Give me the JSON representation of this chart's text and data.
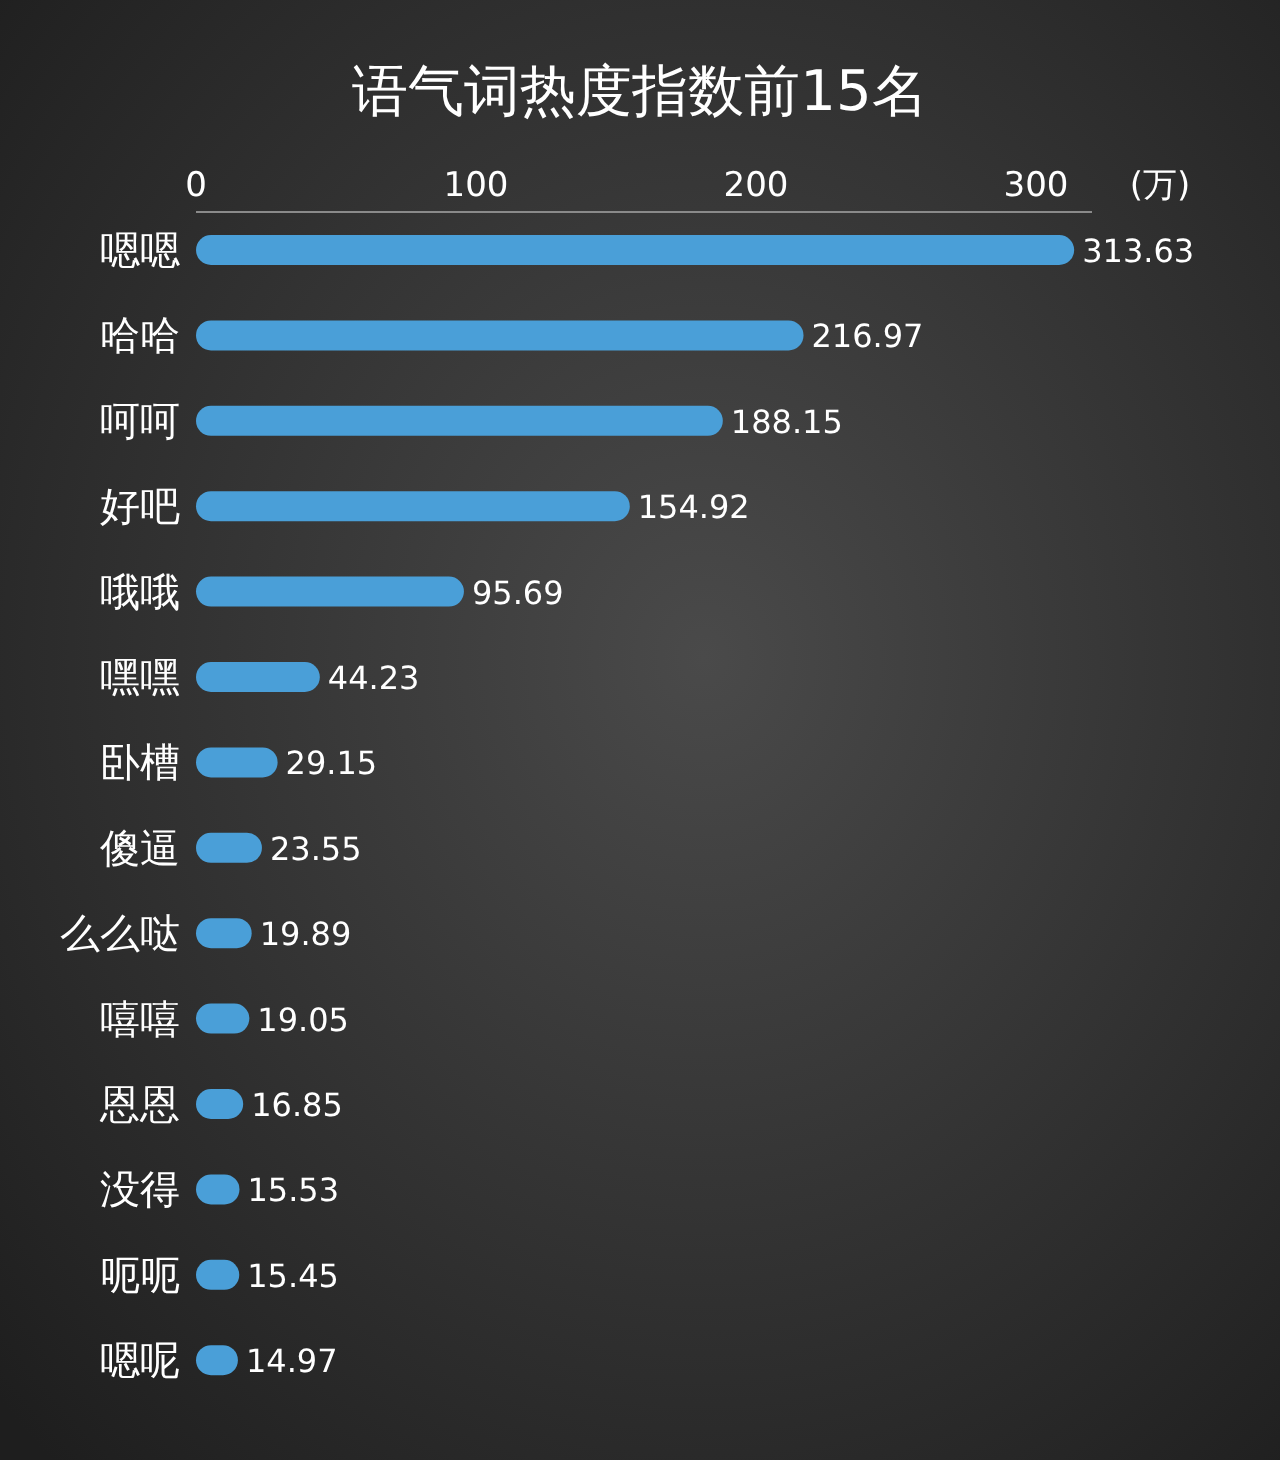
{
  "chart_data": {
    "type": "bar",
    "orientation": "horizontal",
    "title": "语气词热度指数前15名",
    "xlabel": "(万)",
    "categories": [
      "嗯嗯",
      "哈哈",
      "呵呵",
      "好吧",
      "哦哦",
      "嘿嘿",
      "卧槽",
      "傻逼",
      "么么哒",
      "嘻嘻",
      "恩恩",
      "没得",
      "呃呃",
      "嗯呢"
    ],
    "values": [
      313.63,
      216.97,
      188.15,
      154.92,
      95.69,
      44.23,
      29.15,
      23.55,
      19.89,
      19.05,
      16.85,
      15.53,
      15.45,
      14.97
    ],
    "color": "#4a9fd8",
    "xlim": [
      0,
      320
    ],
    "xticks": [
      0,
      100,
      200,
      300
    ],
    "data_labels": true,
    "grid": false
  }
}
